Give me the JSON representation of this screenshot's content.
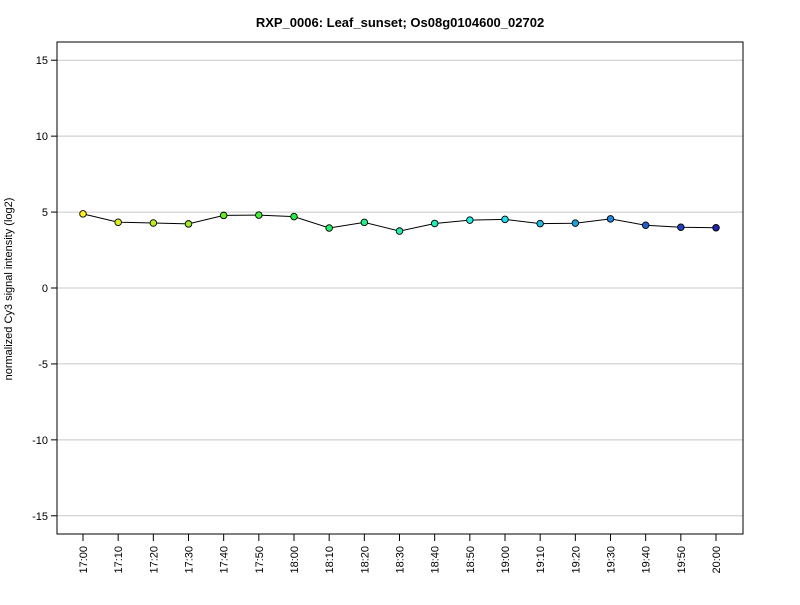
{
  "chart_data": {
    "type": "line",
    "title": "RXP_0006: Leaf_sunset; Os08g0104600_02702",
    "xlabel": "",
    "ylabel": "normalized Cy3 signal intensity (log2)",
    "ylim": [
      -16.2,
      16.2
    ],
    "yticks": [
      15,
      10,
      5,
      0,
      -5,
      -10,
      -15
    ],
    "grid": "horizontal",
    "categories": [
      "17:00",
      "17:10",
      "17:20",
      "17:30",
      "17:40",
      "17:50",
      "18:00",
      "18:10",
      "18:20",
      "18:30",
      "18:40",
      "18:50",
      "19:00",
      "19:10",
      "19:20",
      "19:30",
      "19:40",
      "19:50",
      "20:00"
    ],
    "values": [
      4.88,
      4.33,
      4.28,
      4.22,
      4.78,
      4.8,
      4.7,
      3.95,
      4.32,
      3.75,
      4.25,
      4.47,
      4.52,
      4.24,
      4.27,
      4.55,
      4.13,
      4.0,
      3.97
    ],
    "point_colors": [
      "#ffee22",
      "#ddee22",
      "#b8ee22",
      "#9eee22",
      "#66ee22",
      "#44ee33",
      "#22ee44",
      "#22ee66",
      "#22ee88",
      "#22eeaa",
      "#22eebb",
      "#22eedd",
      "#22ddee",
      "#22bbdd",
      "#1fa2dc",
      "#1f88dd",
      "#1f5fcc",
      "#1f3fbb",
      "#1f22aa"
    ],
    "line_color": "#000000",
    "grid_color": "#c8c8c8"
  }
}
